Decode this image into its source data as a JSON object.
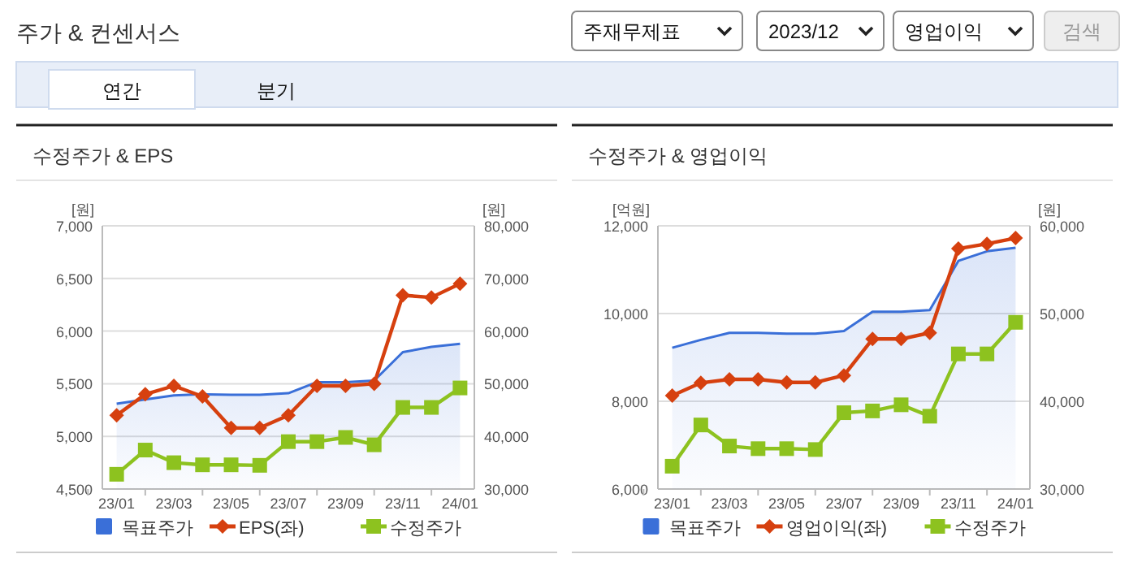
{
  "chart_data": [
    {
      "type": "other",
      "title": "주가 & 컨센서스",
      "annotations": [
        "주재무제표",
        "2023/12",
        "영업이익",
        "검색",
        "연간",
        "분기"
      ]
    },
    {
      "type": "line",
      "title": "수정주가 & EPS",
      "ylabel": "[원]",
      "y2label": "[원]",
      "categories": [
        "23/01",
        null,
        "23/03",
        null,
        "23/05",
        null,
        "23/07",
        null,
        "23/09",
        null,
        "23/11",
        null,
        "24/01"
      ],
      "ylim": [
        4500,
        7000
      ],
      "yticks": [
        {
          "value": 4500,
          "label": "4,500"
        },
        {
          "value": 5000,
          "label": "5,000"
        },
        {
          "value": 5500,
          "label": "5,500"
        },
        {
          "value": 6000,
          "label": "6,000"
        },
        {
          "value": 6500,
          "label": "6,500"
        },
        {
          "value": 7000,
          "label": "7,000"
        }
      ],
      "y2lim": [
        30000,
        80000
      ],
      "y2ticks": [
        {
          "value": 30000,
          "label": "30,000"
        },
        {
          "value": 40000,
          "label": "40,000"
        },
        {
          "value": 50000,
          "label": "50,000"
        },
        {
          "value": 60000,
          "label": "60,000"
        },
        {
          "value": 70000,
          "label": "70,000"
        },
        {
          "value": 80000,
          "label": "80,000"
        }
      ],
      "grid": "y",
      "legend": "bottom",
      "series": [
        {
          "name": "목표주가",
          "type": "area",
          "axis": "y2",
          "marker": "none",
          "color": "#3a6fd8",
          "values": [
            46200,
            47000,
            47800,
            48000,
            47900,
            47900,
            48200,
            50300,
            50300,
            50600,
            56000,
            57000,
            57600
          ]
        },
        {
          "name": "EPS(좌)",
          "type": "line",
          "marker": "diamond",
          "color": "#d6400f",
          "values": [
            5200,
            5400,
            5480,
            5380,
            5080,
            5080,
            5200,
            5480,
            5480,
            5500,
            6340,
            6320,
            6450
          ]
        },
        {
          "name": "수정주가",
          "type": "line",
          "axis": "y2",
          "marker": "square",
          "color": "#8dc21f",
          "values": [
            32800,
            37400,
            35000,
            34600,
            34600,
            34500,
            39000,
            39000,
            39800,
            38400,
            45500,
            45500,
            49200
          ]
        }
      ]
    },
    {
      "type": "line",
      "title": "수정주가 & 영업이익",
      "ylabel": "[억원]",
      "y2label": "[원]",
      "categories": [
        "23/01",
        null,
        "23/03",
        null,
        "23/05",
        null,
        "23/07",
        null,
        "23/09",
        null,
        "23/11",
        null,
        "24/01"
      ],
      "ylim": [
        6000,
        12000
      ],
      "yticks": [
        {
          "value": 6000,
          "label": "6,000"
        },
        {
          "value": 8000,
          "label": "8,000"
        },
        {
          "value": 10000,
          "label": "10,000"
        },
        {
          "value": 12000,
          "label": "12,000"
        }
      ],
      "y2lim": [
        30000,
        60000
      ],
      "y2ticks": [
        {
          "value": 30000,
          "label": "30,000"
        },
        {
          "value": 40000,
          "label": "40,000"
        },
        {
          "value": 50000,
          "label": "50,000"
        },
        {
          "value": 60000,
          "label": "60,000"
        }
      ],
      "grid": "y",
      "legend": "bottom",
      "series": [
        {
          "name": "목표주가",
          "type": "area",
          "axis": "y2",
          "marker": "none",
          "color": "#3a6fd8",
          "values": [
            46100,
            47000,
            47800,
            47800,
            47700,
            47700,
            48000,
            50200,
            50200,
            50400,
            56000,
            57100,
            57500
          ]
        },
        {
          "name": "영업이익(좌)",
          "type": "line",
          "marker": "diamond",
          "color": "#d6400f",
          "values": [
            8130,
            8420,
            8500,
            8500,
            8430,
            8430,
            8590,
            9420,
            9420,
            9560,
            11480,
            11590,
            11720
          ]
        },
        {
          "name": "수정주가",
          "type": "line",
          "axis": "y2",
          "marker": "square",
          "color": "#8dc21f",
          "values": [
            32600,
            37300,
            34900,
            34600,
            34600,
            34500,
            38700,
            38900,
            39600,
            38300,
            45400,
            45400,
            49000
          ]
        }
      ]
    }
  ]
}
